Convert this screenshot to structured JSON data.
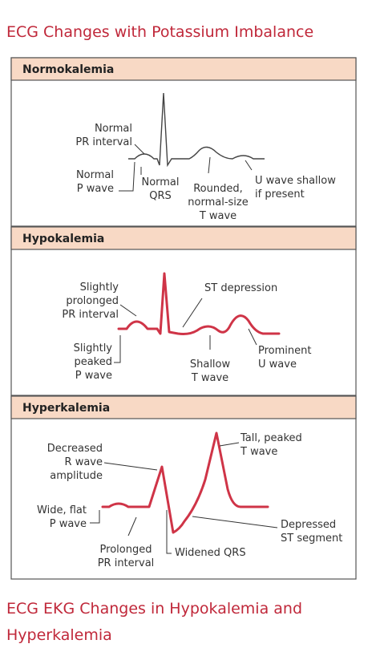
{
  "title": "ECG Changes with Potassium Imbalance",
  "panels": [
    {
      "heading": "Normokalemia",
      "labels": [
        [
          "Normal",
          "PR interval"
        ],
        [
          "Normal",
          "P wave"
        ],
        [
          "Normal",
          "QRS"
        ],
        [
          "Rounded,",
          "normal-size",
          "T wave"
        ],
        [
          "U wave shallow",
          "if present"
        ]
      ]
    },
    {
      "heading": "Hypokalemia",
      "labels": [
        [
          "Slightly",
          "prolonged",
          "PR interval"
        ],
        [
          "ST depression"
        ],
        [
          "Slightly",
          "peaked",
          "P wave"
        ],
        [
          "Shallow",
          "T wave"
        ],
        [
          "Prominent",
          "U wave"
        ]
      ]
    },
    {
      "heading": "Hyperkalemia",
      "labels": [
        [
          "Decreased",
          "R wave",
          "amplitude"
        ],
        [
          "Tall, peaked",
          "T wave"
        ],
        [
          "Wide, flat",
          "P wave"
        ],
        [
          "Depressed",
          "ST segment"
        ],
        [
          "Prolonged",
          "PR interval"
        ],
        [
          "Widened QRS"
        ]
      ]
    }
  ],
  "caption": [
    "ECG EKG Changes in Hypokalemia and",
    "Hyperkalemia"
  ]
}
